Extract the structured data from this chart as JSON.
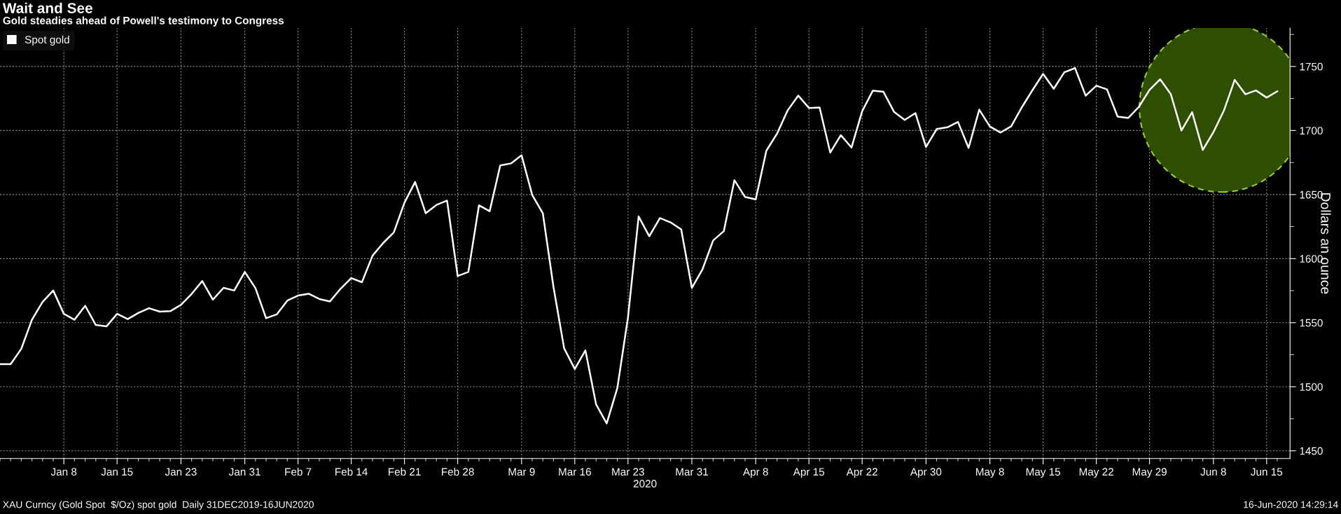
{
  "chart_data": {
    "type": "line",
    "title": "Wait and See",
    "subtitle": "Gold steadies ahead of Powell's testimony to Congress",
    "xlabel": "2020",
    "ylabel": "Dollars an ounce",
    "annotations": [
      "XAU Curncy (Gold Spot  $/Oz) spot gold  Daily 31DEC2019-16JUN2020",
      "16-Jun-2020 14:29:14"
    ],
    "categories": [
      null,
      null,
      null,
      null,
      null,
      null,
      "Jan 8",
      null,
      null,
      null,
      null,
      "Jan 15",
      null,
      null,
      null,
      null,
      null,
      "Jan 23",
      null,
      null,
      null,
      null,
      null,
      "Jan 31",
      null,
      null,
      null,
      null,
      "Feb 7",
      null,
      null,
      null,
      null,
      "Feb 14",
      null,
      null,
      null,
      null,
      "Feb 21",
      null,
      null,
      null,
      null,
      "Feb 28",
      null,
      null,
      null,
      null,
      null,
      "Mar 9",
      null,
      null,
      null,
      null,
      "Mar 16",
      null,
      null,
      null,
      null,
      "Mar 23",
      null,
      null,
      null,
      null,
      null,
      "Mar 31",
      null,
      null,
      null,
      null,
      null,
      "Apr 8",
      null,
      null,
      null,
      null,
      "Apr 15",
      null,
      null,
      null,
      null,
      "Apr 22",
      null,
      null,
      null,
      null,
      null,
      "Apr 30",
      null,
      null,
      null,
      null,
      null,
      "May 8",
      null,
      null,
      null,
      null,
      "May 15",
      null,
      null,
      null,
      null,
      "May 22",
      null,
      null,
      null,
      null,
      "May 29",
      null,
      null,
      null,
      null,
      null,
      "Jun 8",
      null,
      null,
      null,
      null,
      "Jun 15",
      null
    ],
    "series": [
      {
        "name": "Spot gold",
        "color": "#ffffff",
        "values": [
          1517.6,
          1517.6,
          1529.6,
          1552.3,
          1566.2,
          1575.1,
          1556.9,
          1552.3,
          1563.2,
          1548.2,
          1547.1,
          1556.9,
          1552.8,
          1557.6,
          1561.3,
          1558.6,
          1559.0,
          1563.9,
          1572.4,
          1582.5,
          1568.0,
          1577.2,
          1575.1,
          1589.6,
          1577.0,
          1553.5,
          1556.5,
          1567.3,
          1571.2,
          1572.6,
          1568.5,
          1566.6,
          1576.5,
          1584.8,
          1581.6,
          1602.3,
          1612.2,
          1620.5,
          1643.7,
          1659.8,
          1635.4,
          1641.9,
          1645.3,
          1586.4,
          1589.6,
          1641.6,
          1637.0,
          1672.7,
          1674.3,
          1680.7,
          1649.7,
          1635.4,
          1577.9,
          1530.0,
          1513.9,
          1528.4,
          1486.3,
          1471.4,
          1499.0,
          1554.2,
          1632.9,
          1617.5,
          1631.7,
          1628.3,
          1622.8,
          1577.2,
          1591.7,
          1614.2,
          1621.4,
          1661.2,
          1648.1,
          1646.2,
          1684.2,
          1697.5,
          1715.7,
          1727.2,
          1717.6,
          1718.0,
          1682.8,
          1696.4,
          1686.7,
          1715.0,
          1731.1,
          1730.2,
          1714.5,
          1708.3,
          1713.6,
          1687.1,
          1701.1,
          1702.5,
          1706.7,
          1686.4,
          1716.3,
          1703.1,
          1698.4,
          1703.3,
          1718.1,
          1731.5,
          1744.2,
          1732.6,
          1745.5,
          1748.7,
          1727.2,
          1735.0,
          1732.1,
          1710.9,
          1709.8,
          1718.5,
          1731.7,
          1740.0,
          1728.3,
          1700.0,
          1714.3,
          1684.8,
          1698.7,
          1715.8,
          1739.5,
          1728.3,
          1731.3,
          1725.7,
          1730.6
        ]
      }
    ],
    "ylim": [
      1444,
      1780
    ],
    "yticks": [
      1450,
      {
        "value": 1475,
        "label": null
      },
      1500,
      {
        "value": 1525,
        "label": null
      },
      1550,
      {
        "value": 1575,
        "label": null
      },
      1600,
      {
        "value": 1625,
        "label": null
      },
      1650,
      {
        "value": 1675,
        "label": null
      },
      1700,
      {
        "value": 1725,
        "label": null
      },
      1750,
      {
        "value": 1775,
        "label": null
      }
    ],
    "grid": true,
    "legend": "top left",
    "line_style": "solid",
    "marker": "none"
  }
}
